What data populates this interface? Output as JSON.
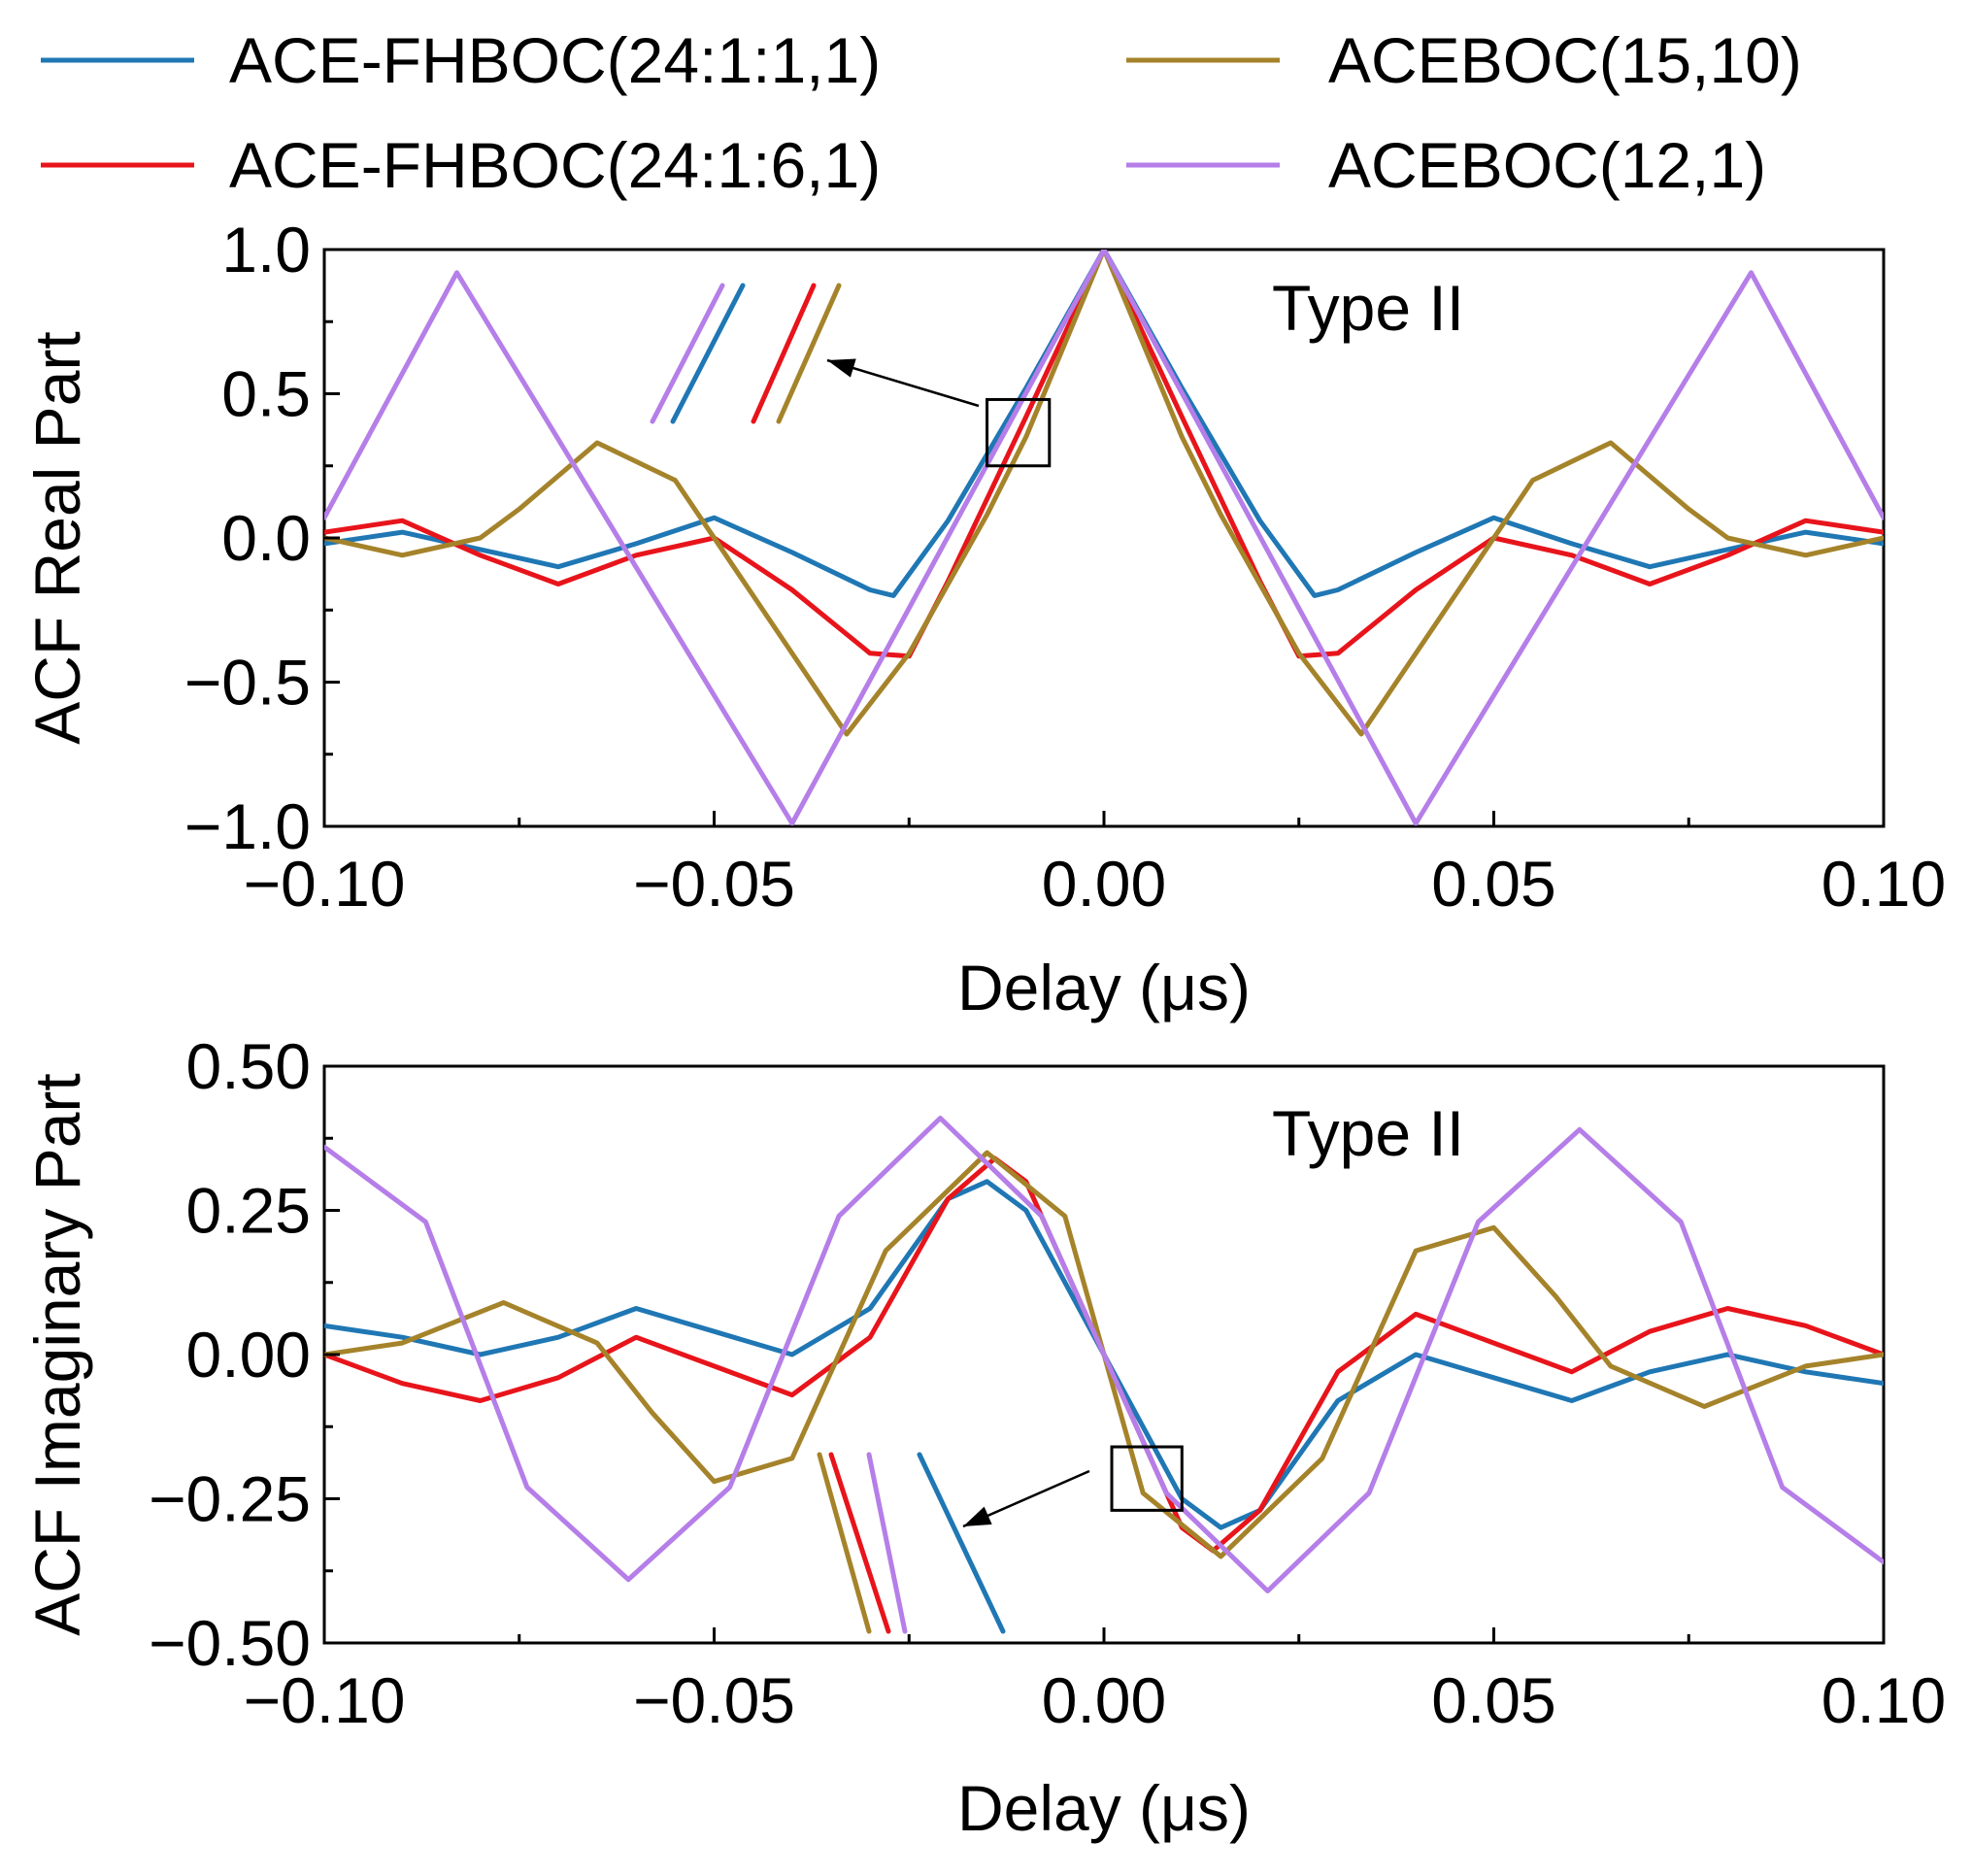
{
  "legend": {
    "items": [
      {
        "label": "ACE-FHBOC(24:1:1,1)",
        "color": "#1f77b4"
      },
      {
        "label": "ACE-FHBOC(24:1:6,1)",
        "color": "#e8141b"
      },
      {
        "label": "ACEBOC(15,10)",
        "color": "#a5832a"
      },
      {
        "label": "ACEBOC(12,1)",
        "color": "#b57ee8"
      }
    ]
  },
  "chart_data": [
    {
      "type": "line",
      "annotation": "Type II",
      "xlabel": "Delay (μs)",
      "ylabel": "ACF Real Part",
      "xlim": [
        -0.1,
        0.1
      ],
      "ylim": [
        -1.0,
        1.0
      ],
      "xticks": [
        -0.1,
        -0.05,
        0.0,
        0.05,
        0.1
      ],
      "xtick_labels": [
        "−0.10",
        "−0.05",
        "0.00",
        "0.05",
        "0.10"
      ],
      "yticks": [
        1.0,
        0.5,
        0.0,
        -0.5,
        -1.0
      ],
      "ytick_labels": [
        "1.0",
        "0.5",
        "0.0",
        "−0.5",
        "−1.0"
      ],
      "series": [
        {
          "name": "ACE-FHBOC(24:1:1,1)",
          "color": "#1f77b4",
          "x": [
            -0.1,
            -0.09,
            -0.08,
            -0.07,
            -0.06,
            -0.05,
            -0.04,
            -0.03,
            -0.027,
            -0.02,
            -0.01,
            0.0,
            0.01,
            0.02,
            0.027,
            0.03,
            0.04,
            0.05,
            0.06,
            0.07,
            0.08,
            0.09,
            0.1
          ],
          "y": [
            -0.02,
            0.02,
            -0.04,
            -0.1,
            -0.02,
            0.07,
            -0.05,
            -0.18,
            -0.2,
            0.06,
            0.52,
            1.0,
            0.52,
            0.06,
            -0.2,
            -0.18,
            -0.05,
            0.07,
            -0.02,
            -0.1,
            -0.04,
            0.02,
            -0.02
          ]
        },
        {
          "name": "ACE-FHBOC(24:1:6,1)",
          "color": "#e8141b",
          "x": [
            -0.1,
            -0.09,
            -0.08,
            -0.07,
            -0.06,
            -0.05,
            -0.04,
            -0.03,
            -0.025,
            -0.02,
            -0.01,
            0.0,
            0.01,
            0.02,
            0.025,
            0.03,
            0.04,
            0.05,
            0.06,
            0.07,
            0.08,
            0.09,
            0.1
          ],
          "y": [
            0.02,
            0.06,
            -0.06,
            -0.16,
            -0.06,
            0.0,
            -0.18,
            -0.4,
            -0.41,
            -0.15,
            0.42,
            1.0,
            0.42,
            -0.15,
            -0.41,
            -0.4,
            -0.18,
            0.0,
            -0.06,
            -0.16,
            -0.06,
            0.06,
            0.02
          ]
        },
        {
          "name": "ACEBOC(15,10)",
          "color": "#a5832a",
          "x": [
            -0.1,
            -0.09,
            -0.08,
            -0.075,
            -0.065,
            -0.055,
            -0.045,
            -0.033,
            -0.025,
            -0.015,
            -0.01,
            0.0,
            0.01,
            0.015,
            0.025,
            0.033,
            0.045,
            0.055,
            0.065,
            0.075,
            0.08,
            0.09,
            0.1
          ],
          "y": [
            0.0,
            -0.06,
            0.0,
            0.1,
            0.33,
            0.2,
            -0.2,
            -0.68,
            -0.4,
            0.08,
            0.35,
            1.0,
            0.35,
            0.08,
            -0.4,
            -0.68,
            -0.2,
            0.2,
            0.33,
            0.1,
            0.0,
            -0.06,
            0.0
          ]
        },
        {
          "name": "ACEBOC(12,1)",
          "color": "#b57ee8",
          "x": [
            -0.1,
            -0.083,
            -0.04,
            0.0,
            0.04,
            0.083,
            0.1
          ],
          "y": [
            0.07,
            0.92,
            -0.99,
            1.0,
            -0.99,
            0.92,
            0.07
          ]
        }
      ],
      "inset": {
        "order": [
          "ACEBOC(12,1)",
          "ACE-FHBOC(24:1:1,1)",
          "ACE-FHBOC(24:1:6,1)",
          "ACEBOC(15,10)"
        ],
        "box_x": [
          -0.015,
          -0.007
        ],
        "box_y": [
          0.25,
          0.48
        ]
      }
    },
    {
      "type": "line",
      "annotation": "Type II",
      "xlabel": "Delay (μs)",
      "ylabel": "ACF Imaginary Part",
      "xlim": [
        -0.1,
        0.1
      ],
      "ylim": [
        -0.5,
        0.5
      ],
      "xticks": [
        -0.1,
        -0.05,
        0.0,
        0.05,
        0.1
      ],
      "xtick_labels": [
        "−0.10",
        "−0.05",
        "0.00",
        "0.05",
        "0.10"
      ],
      "yticks": [
        0.5,
        0.25,
        0.0,
        -0.25,
        -0.5
      ],
      "ytick_labels": [
        "0.50",
        "0.25",
        "0.00",
        "−0.25",
        "−0.50"
      ],
      "series": [
        {
          "name": "ACE-FHBOC(24:1:1,1)",
          "color": "#1f77b4",
          "x": [
            -0.1,
            -0.09,
            -0.08,
            -0.07,
            -0.06,
            -0.05,
            -0.04,
            -0.03,
            -0.02,
            -0.015,
            -0.01,
            0.0,
            0.01,
            0.015,
            0.02,
            0.03,
            0.04,
            0.05,
            0.06,
            0.07,
            0.08,
            0.09,
            0.1
          ],
          "y": [
            0.05,
            0.03,
            0.0,
            0.03,
            0.08,
            0.04,
            0.0,
            0.08,
            0.27,
            0.3,
            0.25,
            0.0,
            -0.25,
            -0.3,
            -0.27,
            -0.08,
            0.0,
            -0.04,
            -0.08,
            -0.03,
            0.0,
            -0.03,
            -0.05
          ]
        },
        {
          "name": "ACE-FHBOC(24:1:6,1)",
          "color": "#e8141b",
          "x": [
            -0.1,
            -0.09,
            -0.08,
            -0.07,
            -0.06,
            -0.05,
            -0.04,
            -0.03,
            -0.02,
            -0.014,
            -0.01,
            0.0,
            0.01,
            0.014,
            0.02,
            0.03,
            0.04,
            0.05,
            0.06,
            0.07,
            0.08,
            0.09,
            0.1
          ],
          "y": [
            0.0,
            -0.05,
            -0.08,
            -0.04,
            0.03,
            -0.02,
            -0.07,
            0.03,
            0.27,
            0.34,
            0.3,
            0.0,
            -0.3,
            -0.34,
            -0.27,
            -0.03,
            0.07,
            0.02,
            -0.03,
            0.04,
            0.08,
            0.05,
            0.0
          ]
        },
        {
          "name": "ACEBOC(15,10)",
          "color": "#a5832a",
          "x": [
            -0.1,
            -0.09,
            -0.077,
            -0.065,
            -0.058,
            -0.05,
            -0.04,
            -0.028,
            -0.015,
            -0.005,
            0.0,
            0.005,
            0.015,
            0.028,
            0.04,
            0.05,
            0.058,
            0.065,
            0.077,
            0.09,
            0.1
          ],
          "y": [
            0.0,
            0.02,
            0.09,
            0.02,
            -0.1,
            -0.22,
            -0.18,
            0.18,
            0.35,
            0.24,
            0.0,
            -0.24,
            -0.35,
            -0.18,
            0.18,
            0.22,
            0.1,
            -0.02,
            -0.09,
            -0.02,
            0.0
          ]
        },
        {
          "name": "ACEBOC(12,1)",
          "color": "#b57ee8",
          "x": [
            -0.1,
            -0.087,
            -0.074,
            -0.061,
            -0.048,
            -0.034,
            -0.021,
            -0.008,
            0.0,
            0.008,
            0.021,
            0.034,
            0.048,
            0.061,
            0.074,
            0.087,
            0.1
          ],
          "y": [
            0.36,
            0.23,
            -0.23,
            -0.39,
            -0.23,
            0.24,
            0.41,
            0.24,
            0.0,
            -0.24,
            -0.41,
            -0.24,
            0.23,
            0.39,
            0.23,
            -0.23,
            -0.36
          ]
        }
      ],
      "inset": {
        "order": [
          "ACEBOC(15,10)",
          "ACE-FHBOC(24:1:6,1)",
          "ACEBOC(12,1)",
          "ACE-FHBOC(24:1:1,1)"
        ],
        "box_x": [
          0.001,
          0.01
        ],
        "box_y": [
          -0.27,
          -0.16
        ]
      }
    }
  ]
}
